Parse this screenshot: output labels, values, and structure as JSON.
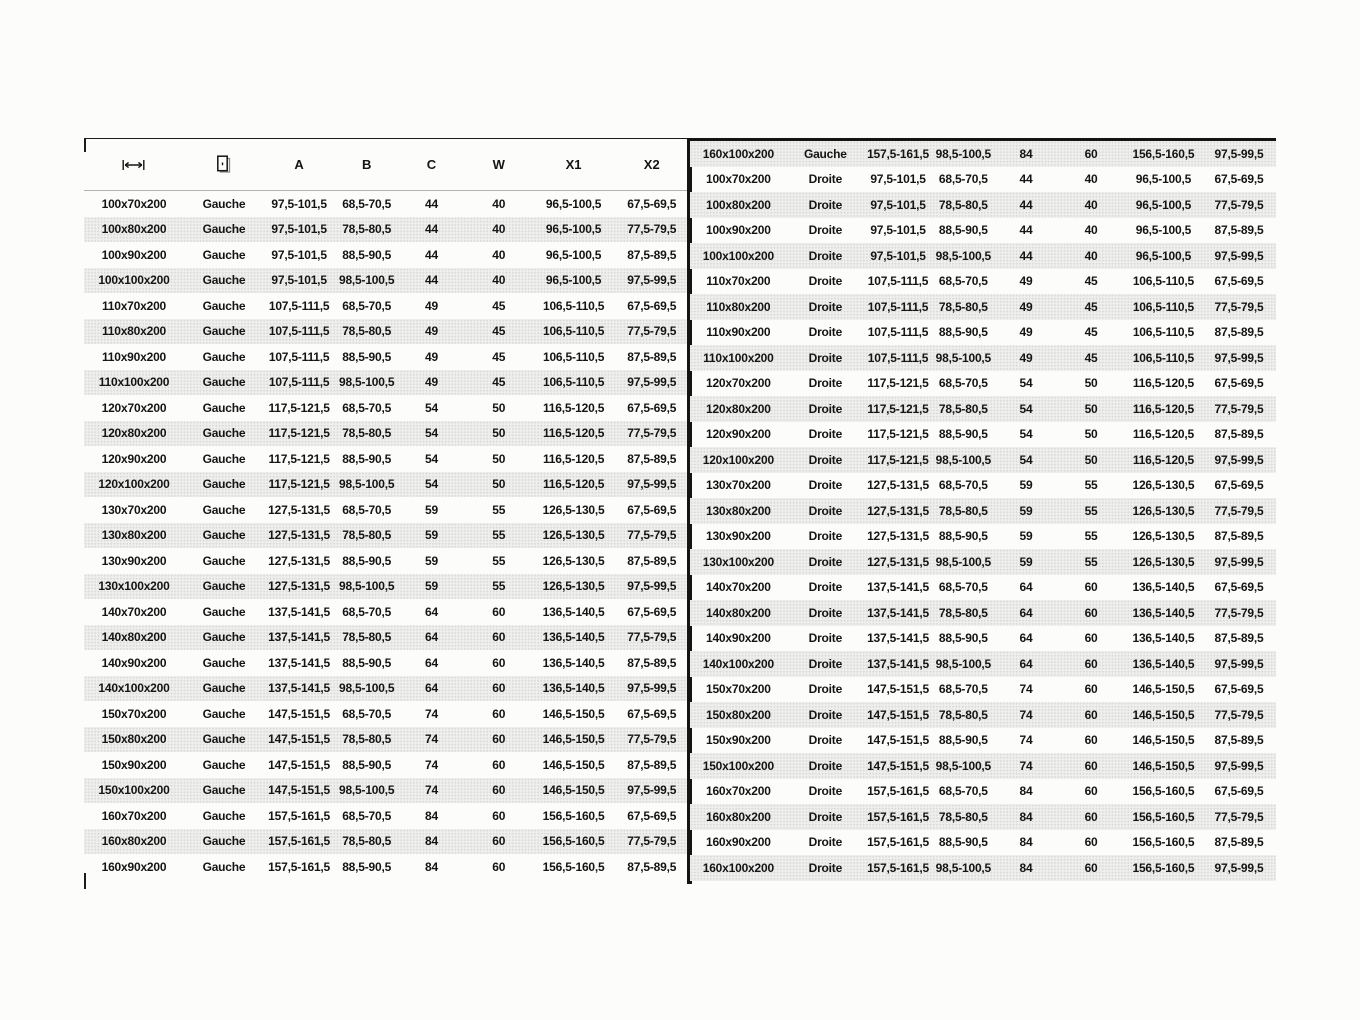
{
  "page": {
    "background": "#fcfcfb"
  },
  "colors": {
    "text": "#141414",
    "stripe": "#efefee",
    "stripe_dot": "#d9d9d8",
    "divider": "#141414",
    "header_rule": "#b3b3b3",
    "frame": "#1c1c1c"
  },
  "header": {
    "size_icon": "width-arrow-icon",
    "side_icon": "door-icon",
    "columns": [
      "A",
      "B",
      "C",
      "W",
      "X1",
      "X2"
    ]
  },
  "left_table": {
    "rows": [
      [
        "100x70x200",
        "Gauche",
        "97,5-101,5",
        "68,5-70,5",
        "44",
        "40",
        "96,5-100,5",
        "67,5-69,5"
      ],
      [
        "100x80x200",
        "Gauche",
        "97,5-101,5",
        "78,5-80,5",
        "44",
        "40",
        "96,5-100,5",
        "77,5-79,5"
      ],
      [
        "100x90x200",
        "Gauche",
        "97,5-101,5",
        "88,5-90,5",
        "44",
        "40",
        "96,5-100,5",
        "87,5-89,5"
      ],
      [
        "100x100x200",
        "Gauche",
        "97,5-101,5",
        "98,5-100,5",
        "44",
        "40",
        "96,5-100,5",
        "97,5-99,5"
      ],
      [
        "110x70x200",
        "Gauche",
        "107,5-111,5",
        "68,5-70,5",
        "49",
        "45",
        "106,5-110,5",
        "67,5-69,5"
      ],
      [
        "110x80x200",
        "Gauche",
        "107,5-111,5",
        "78,5-80,5",
        "49",
        "45",
        "106,5-110,5",
        "77,5-79,5"
      ],
      [
        "110x90x200",
        "Gauche",
        "107,5-111,5",
        "88,5-90,5",
        "49",
        "45",
        "106,5-110,5",
        "87,5-89,5"
      ],
      [
        "110x100x200",
        "Gauche",
        "107,5-111,5",
        "98,5-100,5",
        "49",
        "45",
        "106,5-110,5",
        "97,5-99,5"
      ],
      [
        "120x70x200",
        "Gauche",
        "117,5-121,5",
        "68,5-70,5",
        "54",
        "50",
        "116,5-120,5",
        "67,5-69,5"
      ],
      [
        "120x80x200",
        "Gauche",
        "117,5-121,5",
        "78,5-80,5",
        "54",
        "50",
        "116,5-120,5",
        "77,5-79,5"
      ],
      [
        "120x90x200",
        "Gauche",
        "117,5-121,5",
        "88,5-90,5",
        "54",
        "50",
        "116,5-120,5",
        "87,5-89,5"
      ],
      [
        "120x100x200",
        "Gauche",
        "117,5-121,5",
        "98,5-100,5",
        "54",
        "50",
        "116,5-120,5",
        "97,5-99,5"
      ],
      [
        "130x70x200",
        "Gauche",
        "127,5-131,5",
        "68,5-70,5",
        "59",
        "55",
        "126,5-130,5",
        "67,5-69,5"
      ],
      [
        "130x80x200",
        "Gauche",
        "127,5-131,5",
        "78,5-80,5",
        "59",
        "55",
        "126,5-130,5",
        "77,5-79,5"
      ],
      [
        "130x90x200",
        "Gauche",
        "127,5-131,5",
        "88,5-90,5",
        "59",
        "55",
        "126,5-130,5",
        "87,5-89,5"
      ],
      [
        "130x100x200",
        "Gauche",
        "127,5-131,5",
        "98,5-100,5",
        "59",
        "55",
        "126,5-130,5",
        "97,5-99,5"
      ],
      [
        "140x70x200",
        "Gauche",
        "137,5-141,5",
        "68,5-70,5",
        "64",
        "60",
        "136,5-140,5",
        "67,5-69,5"
      ],
      [
        "140x80x200",
        "Gauche",
        "137,5-141,5",
        "78,5-80,5",
        "64",
        "60",
        "136,5-140,5",
        "77,5-79,5"
      ],
      [
        "140x90x200",
        "Gauche",
        "137,5-141,5",
        "88,5-90,5",
        "64",
        "60",
        "136,5-140,5",
        "87,5-89,5"
      ],
      [
        "140x100x200",
        "Gauche",
        "137,5-141,5",
        "98,5-100,5",
        "64",
        "60",
        "136,5-140,5",
        "97,5-99,5"
      ],
      [
        "150x70x200",
        "Gauche",
        "147,5-151,5",
        "68,5-70,5",
        "74",
        "60",
        "146,5-150,5",
        "67,5-69,5"
      ],
      [
        "150x80x200",
        "Gauche",
        "147,5-151,5",
        "78,5-80,5",
        "74",
        "60",
        "146,5-150,5",
        "77,5-79,5"
      ],
      [
        "150x90x200",
        "Gauche",
        "147,5-151,5",
        "88,5-90,5",
        "74",
        "60",
        "146,5-150,5",
        "87,5-89,5"
      ],
      [
        "150x100x200",
        "Gauche",
        "147,5-151,5",
        "98,5-100,5",
        "74",
        "60",
        "146,5-150,5",
        "97,5-99,5"
      ],
      [
        "160x70x200",
        "Gauche",
        "157,5-161,5",
        "68,5-70,5",
        "84",
        "60",
        "156,5-160,5",
        "67,5-69,5"
      ],
      [
        "160x80x200",
        "Gauche",
        "157,5-161,5",
        "78,5-80,5",
        "84",
        "60",
        "156,5-160,5",
        "77,5-79,5"
      ],
      [
        "160x90x200",
        "Gauche",
        "157,5-161,5",
        "88,5-90,5",
        "84",
        "60",
        "156,5-160,5",
        "87,5-89,5"
      ]
    ]
  },
  "right_table": {
    "rows": [
      [
        "160x100x200",
        "Gauche",
        "157,5-161,5",
        "98,5-100,5",
        "84",
        "60",
        "156,5-160,5",
        "97,5-99,5"
      ],
      [
        "100x70x200",
        "Droite",
        "97,5-101,5",
        "68,5-70,5",
        "44",
        "40",
        "96,5-100,5",
        "67,5-69,5"
      ],
      [
        "100x80x200",
        "Droite",
        "97,5-101,5",
        "78,5-80,5",
        "44",
        "40",
        "96,5-100,5",
        "77,5-79,5"
      ],
      [
        "100x90x200",
        "Droite",
        "97,5-101,5",
        "88,5-90,5",
        "44",
        "40",
        "96,5-100,5",
        "87,5-89,5"
      ],
      [
        "100x100x200",
        "Droite",
        "97,5-101,5",
        "98,5-100,5",
        "44",
        "40",
        "96,5-100,5",
        "97,5-99,5"
      ],
      [
        "110x70x200",
        "Droite",
        "107,5-111,5",
        "68,5-70,5",
        "49",
        "45",
        "106,5-110,5",
        "67,5-69,5"
      ],
      [
        "110x80x200",
        "Droite",
        "107,5-111,5",
        "78,5-80,5",
        "49",
        "45",
        "106,5-110,5",
        "77,5-79,5"
      ],
      [
        "110x90x200",
        "Droite",
        "107,5-111,5",
        "88,5-90,5",
        "49",
        "45",
        "106,5-110,5",
        "87,5-89,5"
      ],
      [
        "110x100x200",
        "Droite",
        "107,5-111,5",
        "98,5-100,5",
        "49",
        "45",
        "106,5-110,5",
        "97,5-99,5"
      ],
      [
        "120x70x200",
        "Droite",
        "117,5-121,5",
        "68,5-70,5",
        "54",
        "50",
        "116,5-120,5",
        "67,5-69,5"
      ],
      [
        "120x80x200",
        "Droite",
        "117,5-121,5",
        "78,5-80,5",
        "54",
        "50",
        "116,5-120,5",
        "77,5-79,5"
      ],
      [
        "120x90x200",
        "Droite",
        "117,5-121,5",
        "88,5-90,5",
        "54",
        "50",
        "116,5-120,5",
        "87,5-89,5"
      ],
      [
        "120x100x200",
        "Droite",
        "117,5-121,5",
        "98,5-100,5",
        "54",
        "50",
        "116,5-120,5",
        "97,5-99,5"
      ],
      [
        "130x70x200",
        "Droite",
        "127,5-131,5",
        "68,5-70,5",
        "59",
        "55",
        "126,5-130,5",
        "67,5-69,5"
      ],
      [
        "130x80x200",
        "Droite",
        "127,5-131,5",
        "78,5-80,5",
        "59",
        "55",
        "126,5-130,5",
        "77,5-79,5"
      ],
      [
        "130x90x200",
        "Droite",
        "127,5-131,5",
        "88,5-90,5",
        "59",
        "55",
        "126,5-130,5",
        "87,5-89,5"
      ],
      [
        "130x100x200",
        "Droite",
        "127,5-131,5",
        "98,5-100,5",
        "59",
        "55",
        "126,5-130,5",
        "97,5-99,5"
      ],
      [
        "140x70x200",
        "Droite",
        "137,5-141,5",
        "68,5-70,5",
        "64",
        "60",
        "136,5-140,5",
        "67,5-69,5"
      ],
      [
        "140x80x200",
        "Droite",
        "137,5-141,5",
        "78,5-80,5",
        "64",
        "60",
        "136,5-140,5",
        "77,5-79,5"
      ],
      [
        "140x90x200",
        "Droite",
        "137,5-141,5",
        "88,5-90,5",
        "64",
        "60",
        "136,5-140,5",
        "87,5-89,5"
      ],
      [
        "140x100x200",
        "Droite",
        "137,5-141,5",
        "98,5-100,5",
        "64",
        "60",
        "136,5-140,5",
        "97,5-99,5"
      ],
      [
        "150x70x200",
        "Droite",
        "147,5-151,5",
        "68,5-70,5",
        "74",
        "60",
        "146,5-150,5",
        "67,5-69,5"
      ],
      [
        "150x80x200",
        "Droite",
        "147,5-151,5",
        "78,5-80,5",
        "74",
        "60",
        "146,5-150,5",
        "77,5-79,5"
      ],
      [
        "150x90x200",
        "Droite",
        "147,5-151,5",
        "88,5-90,5",
        "74",
        "60",
        "146,5-150,5",
        "87,5-89,5"
      ],
      [
        "150x100x200",
        "Droite",
        "147,5-151,5",
        "98,5-100,5",
        "74",
        "60",
        "146,5-150,5",
        "97,5-99,5"
      ],
      [
        "160x70x200",
        "Droite",
        "157,5-161,5",
        "68,5-70,5",
        "84",
        "60",
        "156,5-160,5",
        "67,5-69,5"
      ],
      [
        "160x80x200",
        "Droite",
        "157,5-161,5",
        "78,5-80,5",
        "84",
        "60",
        "156,5-160,5",
        "77,5-79,5"
      ],
      [
        "160x90x200",
        "Droite",
        "157,5-161,5",
        "88,5-90,5",
        "84",
        "60",
        "156,5-160,5",
        "87,5-89,5"
      ],
      [
        "160x100x200",
        "Droite",
        "157,5-161,5",
        "98,5-100,5",
        "84",
        "60",
        "156,5-160,5",
        "97,5-99,5"
      ]
    ]
  }
}
